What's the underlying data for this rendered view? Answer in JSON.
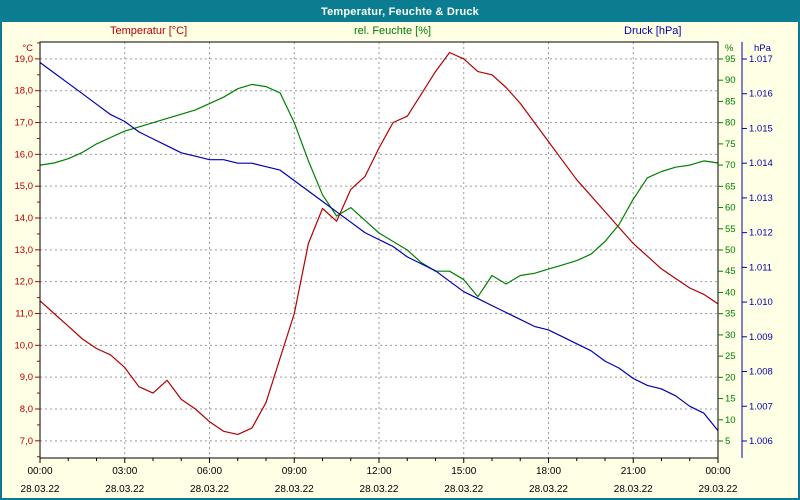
{
  "window": {
    "title": "Temperatur, Feuchte & Druck"
  },
  "legend": {
    "temperature": "Temperatur [°C]",
    "humidity": "rel. Feuchte [%]",
    "pressure": "Druck [hPa]"
  },
  "colors": {
    "frame": "#0d7a94",
    "titlebar_bg": "#0a7d91",
    "titlebar_text": "#ffffff",
    "background": "#ffffe6",
    "temperature": "#b40000",
    "humidity": "#008000",
    "pressure": "#0000b0"
  },
  "chart_data": {
    "type": "line",
    "title": "Temperatur, Feuchte & Druck",
    "layout": {
      "plot_background": "#ffffff",
      "grid_color": "#9a9a9a",
      "grid_dash": "2,3",
      "frame_color": "#000000",
      "legend_position": "top",
      "grid": true
    },
    "x_hours": [
      0,
      0.5,
      1,
      1.5,
      2,
      2.5,
      3,
      3.5,
      4,
      4.5,
      5,
      5.5,
      6,
      6.5,
      7,
      7.5,
      8,
      8.5,
      9,
      9.5,
      10,
      10.5,
      11,
      11.5,
      12,
      12.5,
      13,
      13.5,
      14,
      14.5,
      15,
      15.5,
      16,
      16.5,
      17,
      17.5,
      18,
      18.5,
      19,
      19.5,
      20,
      20.5,
      21,
      21.5,
      22,
      22.5,
      23,
      23.5,
      24
    ],
    "x_axis": {
      "tick_hours": [
        0,
        3,
        6,
        9,
        12,
        15,
        18,
        21,
        24
      ],
      "tick_labels": [
        "00:00",
        "03:00",
        "06:00",
        "09:00",
        "12:00",
        "15:00",
        "18:00",
        "21:00",
        "00:00"
      ],
      "date_labels": [
        "28.03.22",
        "28.03.22",
        "28.03.22",
        "28.03.22",
        "28.03.22",
        "28.03.22",
        "28.03.22",
        "28.03.22",
        "29.03.22"
      ]
    },
    "axes": {
      "temperature": {
        "unit": "°C",
        "color": "#b40000",
        "side": "left",
        "min": 6.46,
        "max": 19.53,
        "tick_values": [
          19,
          18,
          17,
          16,
          15,
          14,
          13,
          12,
          11,
          10,
          9,
          8,
          7
        ],
        "tick_labels": [
          "19,0",
          "18,0",
          "17,0",
          "16,0",
          "15,0",
          "14,0",
          "13,0",
          "12,0",
          "11,0",
          "10,0",
          "9,0",
          "8,0",
          "7,0"
        ],
        "minor_step": 0.5
      },
      "humidity": {
        "unit": "%",
        "color": "#008000",
        "side": "right-inner",
        "min": 1,
        "max": 99,
        "tick_values": [
          95,
          90,
          85,
          80,
          75,
          70,
          65,
          60,
          55,
          50,
          45,
          40,
          35,
          30,
          25,
          20,
          15,
          10,
          5
        ],
        "tick_labels": [
          "95",
          "90",
          "85",
          "80",
          "75",
          "70",
          "65",
          "60",
          "55",
          "50",
          "45",
          "40",
          "35",
          "30",
          "25",
          "20",
          "15",
          "10",
          "5"
        ]
      },
      "pressure": {
        "unit": "hPa",
        "color": "#0000b0",
        "side": "right-outer",
        "min": 1.00551,
        "max": 1.01749,
        "tick_values": [
          1.017,
          1.016,
          1.015,
          1.014,
          1.013,
          1.012,
          1.011,
          1.01,
          1.009,
          1.008,
          1.007,
          1.006
        ],
        "tick_labels": [
          "1.017",
          "1.016",
          "1.015",
          "1.014",
          "1.013",
          "1.012",
          "1.011",
          "1.010",
          "1.009",
          "1.008",
          "1.007",
          "1.006"
        ]
      }
    },
    "series": [
      {
        "name": "Temperatur [°C]",
        "axis": "temperature",
        "color": "#b40000",
        "values": [
          11.4,
          11.0,
          10.6,
          10.2,
          9.9,
          9.7,
          9.3,
          8.7,
          8.5,
          8.9,
          8.3,
          8.0,
          7.6,
          7.3,
          7.2,
          7.4,
          8.2,
          9.6,
          11.0,
          13.2,
          14.3,
          13.9,
          14.9,
          15.3,
          16.2,
          17.0,
          17.2,
          17.9,
          18.6,
          19.2,
          19.0,
          18.6,
          18.5,
          18.1,
          17.6,
          17.0,
          16.4,
          15.8,
          15.2,
          14.7,
          14.2,
          13.7,
          13.2,
          12.8,
          12.4,
          12.1,
          11.8,
          11.6,
          11.3
        ]
      },
      {
        "name": "rel. Feuchte [%]",
        "axis": "humidity",
        "color": "#008000",
        "values": [
          70,
          70.5,
          71.5,
          73,
          75,
          76.5,
          78,
          79,
          80,
          81,
          82,
          83,
          84.5,
          86,
          88,
          89,
          88.5,
          87,
          80,
          71,
          63,
          58,
          60,
          57,
          54,
          52,
          50,
          47,
          45,
          45,
          43,
          39,
          44,
          42,
          44,
          44.5,
          45.5,
          46.5,
          47.5,
          49,
          52,
          56,
          62,
          67,
          68.5,
          69.5,
          70,
          71,
          70.5
        ]
      },
      {
        "name": "Druck [hPa]",
        "axis": "pressure",
        "color": "#0000b0",
        "values": [
          1.0169,
          1.0166,
          1.0163,
          1.016,
          1.0157,
          1.0154,
          1.0152,
          1.0149,
          1.0147,
          1.0145,
          1.0143,
          1.0142,
          1.0141,
          1.0141,
          1.014,
          1.014,
          1.0139,
          1.0138,
          1.0135,
          1.0132,
          1.0129,
          1.0126,
          1.0123,
          1.012,
          1.0118,
          1.0116,
          1.0113,
          1.0111,
          1.0109,
          1.0106,
          1.0103,
          1.0101,
          1.0099,
          1.0097,
          1.0095,
          1.0093,
          1.0092,
          1.009,
          1.0088,
          1.0086,
          1.0083,
          1.0081,
          1.0078,
          1.0076,
          1.0075,
          1.0073,
          1.007,
          1.0068,
          1.0063
        ]
      }
    ]
  }
}
